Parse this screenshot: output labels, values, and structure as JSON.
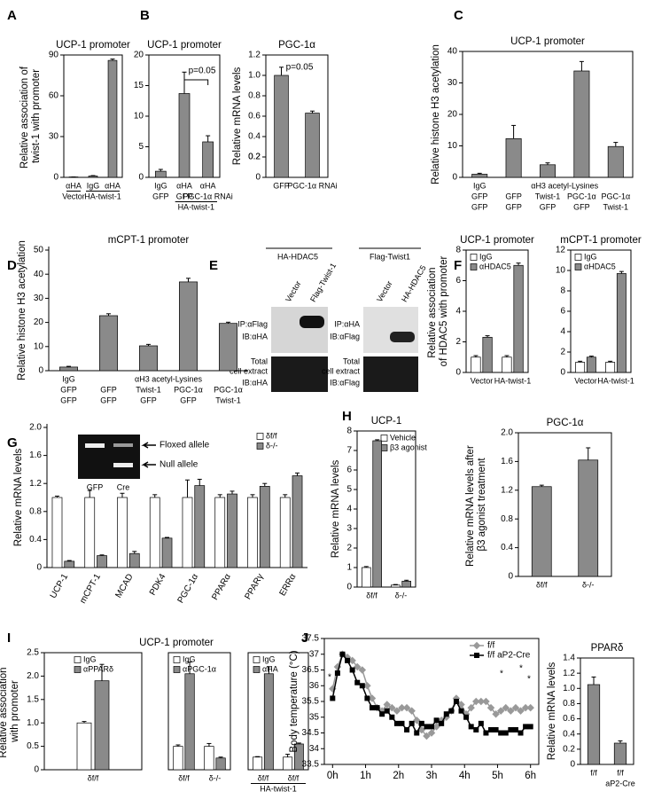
{
  "chart_data": [
    {
      "type": "bar",
      "letter": "A",
      "title": "UCP-1 promoter",
      "ylabel": "Relative association of twist-1 with promoter",
      "categories": [
        "αHA",
        "IgG",
        "αHA"
      ],
      "values": [
        0.3,
        1,
        86
      ],
      "errors": [
        0,
        0.3,
        1
      ],
      "color": "#8a8a8a",
      "ylim": [
        0,
        90
      ],
      "yticks": [
        0,
        30,
        60,
        90
      ],
      "groups": [
        "Vector",
        "HA-twist-1"
      ]
    },
    {
      "type": "bar",
      "letter": "B",
      "title": "UCP-1 promoter",
      "categories": [
        "IgG",
        "αHA",
        "αHA"
      ],
      "category_rows": [
        [
          "GFP",
          "GFP",
          "PGC-1α RNAi"
        ]
      ],
      "values": [
        1,
        13.7,
        5.8
      ],
      "errors": [
        0.3,
        3.5,
        1
      ],
      "color": "#8a8a8a",
      "ylim": [
        0,
        20
      ],
      "yticks": [
        0,
        5,
        10,
        15,
        20
      ],
      "groups": [
        "HA-twist-1"
      ],
      "annotations": [
        "p=0.05"
      ]
    },
    {
      "type": "bar",
      "title": "PGC-1α",
      "ylabel": "Relative mRNA levels",
      "categories": [
        "GFP",
        "PGC-1α RNAi"
      ],
      "values": [
        1,
        0.63
      ],
      "errors": [
        0.08,
        0.02
      ],
      "color": "#8a8a8a",
      "ylim": [
        0,
        1.2
      ],
      "yticks": [
        0,
        0.2,
        0.4,
        0.6,
        0.8,
        {
          "value": 1,
          "label": "1.0"
        },
        0.2,
        {
          "value": 1.2,
          "label": "1.2"
        }
      ],
      "annotations": [
        "p=0.05"
      ]
    },
    {
      "type": "bar",
      "letter": "C",
      "title": "UCP-1 promoter",
      "ylabel": "Relative histone H3 acetylation",
      "categories": [
        "IgG",
        null,
        null,
        null,
        null
      ],
      "category_rows": [
        [
          "GFP",
          "GFP",
          "Twist-1",
          "PGC-1α",
          "PGC-1α"
        ],
        [
          "GFP",
          "GFP",
          "GFP",
          "GFP",
          "Twist-1"
        ]
      ],
      "values": [
        1,
        12.3,
        4,
        33.8,
        9.8
      ],
      "errors": [
        0.3,
        4.2,
        0.6,
        3,
        1.3
      ],
      "color": "#8a8a8a",
      "ylim": [
        0,
        40
      ],
      "yticks": [
        0,
        10,
        20,
        30,
        40
      ],
      "groups": [
        "αH3 acetyl-Lysines"
      ]
    },
    {
      "type": "bar",
      "letter": "D",
      "title": "mCPT-1 promoter",
      "ylabel": "Relative histone H3 acetylation",
      "categories": [
        "IgG",
        null,
        null,
        null,
        null
      ],
      "category_rows": [
        [
          "GFP",
          "GFP",
          "Twist-1",
          "PGC-1α",
          "PGC-1α"
        ],
        [
          "GFP",
          "GFP",
          "GFP",
          "GFP",
          "Twist-1"
        ]
      ],
      "values": [
        1.5,
        22.8,
        10.3,
        36.8,
        19.6
      ],
      "errors": [
        0.3,
        0.8,
        0.6,
        1.5,
        0.5
      ],
      "color": "#8a8a8a",
      "ylim": [
        0,
        50
      ],
      "yticks": [
        0,
        10,
        20,
        30,
        40,
        50
      ],
      "groups": [
        "αH3 acetyl-Lysines"
      ]
    },
    {
      "type": "bar",
      "letter": "F",
      "title": "UCP-1 promoter",
      "ylabel": "Relative association of HDAC5 with promoter",
      "categories": [
        "Vector",
        "HA-twist-1"
      ],
      "series": [
        {
          "name": "IgG",
          "color": "#ffffff",
          "values": [
            1,
            1
          ],
          "errors": [
            0.1,
            0.1
          ]
        },
        {
          "name": "αHDAC5",
          "color": "#8a8a8a",
          "values": [
            2.3,
            7
          ],
          "errors": [
            0.1,
            0.15
          ]
        }
      ],
      "ylim": [
        0,
        8
      ],
      "yticks": [
        0,
        2,
        4,
        6,
        8
      ]
    },
    {
      "type": "bar",
      "title": "mCPT-1 promoter",
      "categories": [
        "Vector",
        "HA-twist-1"
      ],
      "series": [
        {
          "name": "IgG",
          "color": "#ffffff",
          "values": [
            1,
            1
          ],
          "errors": [
            0.1,
            0.1
          ]
        },
        {
          "name": "αHDAC5",
          "color": "#8a8a8a",
          "values": [
            1.5,
            9.7
          ],
          "errors": [
            0.1,
            0.2
          ]
        }
      ],
      "ylim": [
        0,
        12
      ],
      "yticks": [
        0,
        2,
        4,
        6,
        8,
        10,
        12
      ]
    },
    {
      "type": "bar",
      "letter": "G",
      "ylabel": "Relative mRNA levels",
      "categories": [
        "UCP-1",
        "mCPT-1",
        "MCAD",
        "PDK4",
        "PGC-1α",
        "PPARα",
        "PPARγ",
        "ERRα"
      ],
      "series": [
        {
          "name": "δf/f",
          "color": "#ffffff",
          "values": [
            1,
            1,
            1,
            1,
            1,
            1,
            1,
            1
          ],
          "errors": [
            0.02,
            0.1,
            0.06,
            0.04,
            0.25,
            0.04,
            0.04,
            0.04
          ]
        },
        {
          "name": "δ-/-",
          "color": "#8a8a8a",
          "values": [
            0.09,
            0.17,
            0.2,
            0.42,
            1.17,
            1.05,
            1.16,
            1.31
          ],
          "errors": [
            0.01,
            0.01,
            0.03,
            0.01,
            0.09,
            0.04,
            0.04,
            0.04
          ]
        }
      ],
      "ylim": [
        0,
        2
      ],
      "yticks": [
        0,
        0.4,
        0.8,
        1.2,
        1.6,
        {
          "value": 2,
          "label": "2.0"
        }
      ],
      "inset": {
        "arrows": [
          "Floxed allele",
          "Null allele"
        ],
        "lanes": [
          "GFP",
          "Cre"
        ]
      }
    },
    {
      "type": "bar",
      "letter": "H",
      "title": "UCP-1",
      "ylabel": "Relative mRNA levels",
      "categories": [
        "δf/f",
        "δ-/-"
      ],
      "series": [
        {
          "name": "Vehicle",
          "color": "#ffffff",
          "values": [
            1,
            0.1
          ],
          "errors": [
            0.05,
            0.03
          ]
        },
        {
          "name": "β3 agonist",
          "color": "#8a8a8a",
          "values": [
            7.5,
            0.3
          ],
          "errors": [
            0.05,
            0.05
          ]
        }
      ],
      "ylim": [
        0,
        8
      ],
      "yticks": [
        0,
        1,
        2,
        3,
        4,
        5,
        6,
        7,
        8
      ]
    },
    {
      "type": "bar",
      "title": "PGC-1α",
      "ylabel": "Relative mRNA levels after β3 agonist treatment",
      "categories": [
        "δf/f",
        "δ-/-"
      ],
      "values": [
        1.25,
        1.62
      ],
      "errors": [
        0.02,
        0.17
      ],
      "color": "#8a8a8a",
      "ylim": [
        0,
        2
      ],
      "yticks": [
        0,
        0.4,
        0.8,
        1.2,
        1.6,
        {
          "value": 2,
          "label": "2.0"
        }
      ]
    },
    {
      "type": "bar",
      "letter": "I",
      "title": "UCP-1 promoter",
      "ylabel": "Relative association with promoter",
      "categories": [
        "δf/f"
      ],
      "series": [
        {
          "name": "IgG",
          "color": "#ffffff",
          "values": [
            1
          ],
          "errors": [
            0.03
          ]
        },
        {
          "name": "αPPARδ",
          "color": "#8a8a8a",
          "values": [
            1.9
          ],
          "errors": [
            0.35
          ]
        }
      ],
      "ylim": [
        0,
        2.5
      ],
      "yticks": [
        0,
        0.5,
        {
          "value": 1,
          "label": "1.0"
        },
        1.5,
        {
          "value": 2,
          "label": "2.0"
        },
        2.5
      ]
    },
    {
      "type": "bar",
      "categories": [
        "δf/f",
        "δ-/-"
      ],
      "series": [
        {
          "name": "IgG",
          "color": "#ffffff",
          "values": [
            0.5,
            0.5
          ],
          "errors": [
            0.03,
            0.06
          ]
        },
        {
          "name": "αPGC-1α",
          "color": "#8a8a8a",
          "values": [
            2.05,
            0.25
          ],
          "errors": [
            0.25,
            0.02
          ]
        }
      ],
      "ylim": [
        0,
        2.5
      ]
    },
    {
      "type": "bar",
      "categories": [
        "δf/f",
        "δf/f"
      ],
      "series": [
        {
          "name": "IgG",
          "color": "#ffffff",
          "values": [
            0.27,
            0.27
          ],
          "errors": [
            0.01,
            0.06
          ]
        },
        {
          "name": "αHA",
          "color": "#8a8a8a",
          "values": [
            2.05,
            0.55
          ],
          "errors": [
            0.15,
            0.02
          ]
        }
      ],
      "ylim": [
        0,
        2.5
      ],
      "groups": [
        "HA-twist-1"
      ]
    },
    {
      "type": "line",
      "letter": "J",
      "ylabel": "Body temperature (°C)",
      "x": [
        0,
        0.15,
        0.3,
        0.45,
        0.6,
        0.75,
        0.9,
        1.05,
        1.2,
        1.35,
        1.5,
        1.65,
        1.8,
        1.95,
        2.1,
        2.25,
        2.4,
        2.55,
        2.7,
        2.85,
        3,
        3.15,
        3.3,
        3.45,
        3.6,
        3.75,
        3.9,
        4.05,
        4.2,
        4.35,
        4.5,
        4.65,
        4.8,
        4.95,
        5.1,
        5.25,
        5.4,
        5.55,
        5.7,
        5.85,
        6
      ],
      "series": [
        {
          "name": "f/f",
          "color": "#999999",
          "values": [
            35.9,
            36.6,
            37.0,
            36.9,
            36.8,
            36.6,
            36.5,
            36.0,
            35.6,
            35.3,
            35.2,
            35.4,
            35.3,
            35.2,
            35.3,
            35.3,
            35.2,
            34.9,
            34.6,
            34.4,
            34.5,
            34.7,
            34.9,
            35.0,
            35.2,
            35.6,
            35.4,
            35.1,
            35.3,
            35.5,
            35.5,
            35.5,
            35.3,
            35.1,
            35.2,
            35.3,
            35.2,
            35.3,
            35.2,
            35.3,
            35.3
          ]
        },
        {
          "name": "f/f aP2-Cre",
          "color": "#000000",
          "values": [
            35.6,
            36.4,
            37.0,
            36.8,
            36.5,
            36.1,
            36.0,
            35.6,
            35.3,
            35.3,
            35.1,
            35.2,
            35.0,
            34.8,
            34.8,
            34.6,
            34.8,
            34.5,
            34.8,
            34.7,
            34.7,
            34.9,
            34.8,
            35.1,
            35.2,
            35.5,
            35.2,
            35.0,
            34.7,
            34.6,
            34.8,
            34.5,
            34.6,
            34.6,
            34.5,
            34.5,
            34.6,
            34.6,
            34.5,
            34.7,
            34.7
          ]
        }
      ],
      "xlim": [
        -0.25,
        6.25
      ],
      "xticks": [
        {
          "value": 0,
          "label": "0h"
        },
        {
          "value": 1,
          "label": "1h"
        },
        {
          "value": 2,
          "label": "2h"
        },
        {
          "value": 3,
          "label": "3h"
        },
        {
          "value": 4,
          "label": "4h"
        },
        {
          "value": 5,
          "label": "5h"
        },
        {
          "value": 6,
          "label": "6h"
        }
      ],
      "ylim": [
        33.5,
        37.5
      ],
      "yticks": [
        33.5,
        34,
        34.5,
        35,
        35.5,
        36,
        36.5,
        37,
        37.5
      ],
      "annotations": [
        "*",
        "*",
        "*",
        "*"
      ]
    },
    {
      "type": "bar",
      "title": "PPARδ",
      "ylabel": "Relative mRNA levels",
      "categories": [
        "f/f",
        "f/f"
      ],
      "category_rows": [
        [
          null,
          "aP2-Cre"
        ]
      ],
      "values": [
        1.05,
        0.28
      ],
      "errors": [
        0.1,
        0.03
      ],
      "color": "#8a8a8a",
      "ylim": [
        0,
        1.4
      ],
      "yticks": [
        0,
        0.2,
        0.4,
        0.6,
        0.8,
        {
          "value": 1,
          "label": "1.0"
        },
        {
          "value": 1.2,
          "label": "1.2"
        },
        {
          "value": 1.4,
          "label": "1.4"
        }
      ]
    }
  ],
  "blots": {
    "letter": "E",
    "left": {
      "title": "HA-HDAC5",
      "lanes": [
        "Vector",
        "Flag-Twist-1"
      ],
      "ip": "IP:αFlag",
      "ib_top": "IB:αHA",
      "extract": [
        "Total",
        "cell extract"
      ],
      "ib_bottom": "IB:αHA"
    },
    "right": {
      "title": "Flag-Twist1",
      "lanes": [
        "Vector",
        "HA-HDAC5"
      ],
      "ip": "IP:αHA",
      "ib_top": "IB:αFlag",
      "extract": [
        "Total",
        "cell extract"
      ],
      "ib_bottom": "IB:αFlag"
    }
  }
}
